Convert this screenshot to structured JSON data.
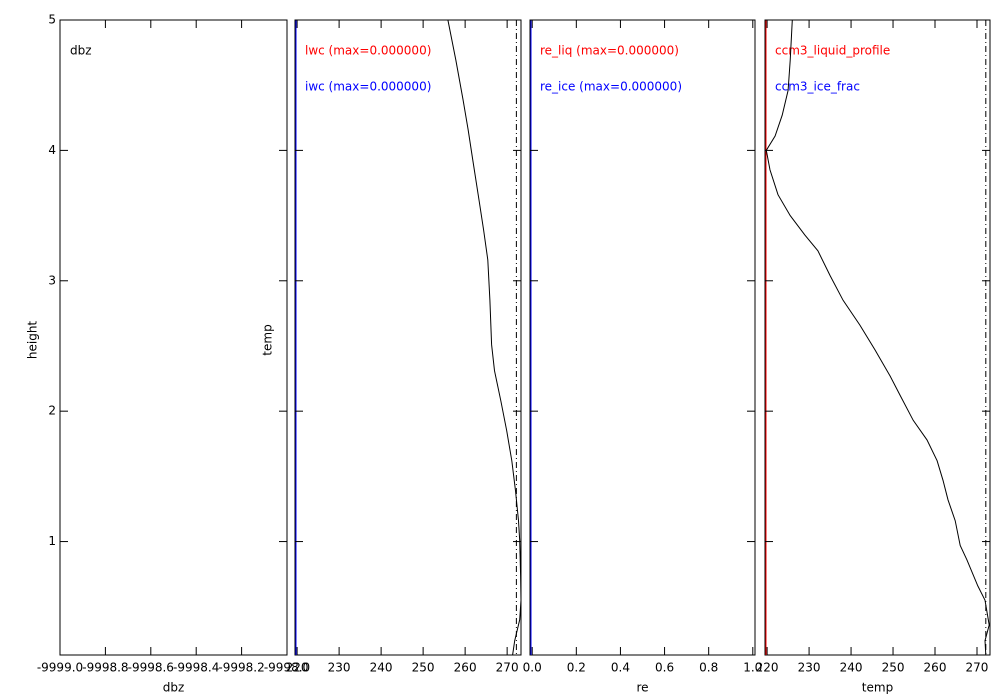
{
  "chart_data": [
    {
      "type": "line",
      "annotations": [
        {
          "text": "dbz",
          "color": "#000000"
        }
      ],
      "xlabel": "dbz",
      "ylabel": "height",
      "xlim": [
        -9999.0,
        -9998.0
      ],
      "xticks": [
        {
          "value": -9999.0,
          "label": "-9999.0"
        },
        {
          "value": -9998.8,
          "label": "-9998.8"
        },
        {
          "value": -9998.6,
          "label": "-9998.6"
        },
        {
          "value": -9998.4,
          "label": "-9998.4"
        },
        {
          "value": -9998.2,
          "label": "-9998.2"
        },
        {
          "value": -9998.0,
          "label": "-9998.0"
        }
      ],
      "ylim": [
        0.13,
        5
      ],
      "yticks": [
        1,
        2,
        3,
        4,
        5
      ],
      "show_ytick_labels": true,
      "series": []
    },
    {
      "type": "line",
      "annotations": [
        {
          "text": "lwc (max=0.000000)",
          "color": "#ff0000"
        },
        {
          "text": "iwc (max=0.000000)",
          "color": "#0000ff"
        }
      ],
      "ylabel": "temp",
      "xlim": [
        219.5,
        273.3
      ],
      "xticks": [
        220,
        230,
        240,
        250,
        260,
        270
      ],
      "ylim": [
        0.13,
        5
      ],
      "yticks": [
        1,
        2,
        3,
        4,
        5
      ],
      "show_ytick_labels": false,
      "left_axis_color": "#0000ff",
      "vline": 272.2,
      "series": [
        {
          "color": "#000000",
          "x": [
            255.9,
            257.8,
            259.5,
            260.7,
            261.8,
            263.3,
            264.4,
            265.4,
            265.9,
            266.3,
            267.0,
            268.5,
            269.9,
            271.1,
            272.0,
            272.7,
            273.0,
            273.2,
            273.3,
            273.0,
            271.8,
            271.3
          ],
          "values": [
            5,
            4.69,
            4.39,
            4.16,
            3.93,
            3.62,
            3.39,
            3.16,
            2.85,
            2.51,
            2.31,
            2.08,
            1.85,
            1.62,
            1.39,
            1.16,
            1.01,
            0.74,
            0.55,
            0.4,
            0.24,
            0.13
          ]
        }
      ]
    },
    {
      "type": "line",
      "annotations": [
        {
          "text": "re_liq (max=0.000000)",
          "color": "#ff0000"
        },
        {
          "text": "re_ice (max=0.000000)",
          "color": "#0000ff"
        }
      ],
      "xlabel": "re",
      "xlim": [
        -0.01,
        1.01
      ],
      "xticks": [
        {
          "value": 0,
          "label": "0.0"
        },
        {
          "value": 0.2,
          "label": "0.2"
        },
        {
          "value": 0.4,
          "label": "0.4"
        },
        {
          "value": 0.6,
          "label": "0.6"
        },
        {
          "value": 0.8,
          "label": "0.8"
        },
        {
          "value": 1,
          "label": "1.0"
        }
      ],
      "ylim": [
        0.13,
        5
      ],
      "yticks": [
        1,
        2,
        3,
        4,
        5
      ],
      "show_ytick_labels": false,
      "left_axis_color": "#0000ff",
      "series": []
    },
    {
      "type": "line",
      "annotations": [
        {
          "text": "ccm3_liquid_profile",
          "color": "#ff0000"
        },
        {
          "text": "ccm3_ice_frac",
          "color": "#0000ff"
        }
      ],
      "xlabel": "temp",
      "xlim": [
        219.5,
        273.1
      ],
      "xticks": [
        220,
        230,
        240,
        250,
        260,
        270
      ],
      "ylim": [
        0.13,
        5
      ],
      "yticks": [
        1,
        2,
        3,
        4,
        5
      ],
      "show_ytick_labels": false,
      "left_axis_color": "#ff0000",
      "vline": 272.1,
      "series": [
        {
          "color": "#000000",
          "x": [
            226.0,
            225.5,
            225.0,
            223.6,
            221.9,
            219.8,
            220.7,
            222.6,
            225.5,
            229.0,
            232.1,
            235.0,
            238.1,
            242.1,
            245.7,
            249.3,
            251.7,
            254.8,
            258.1,
            260.5,
            261.9,
            263.1,
            264.8,
            266.0,
            267.6,
            270.2,
            271.9,
            272.9,
            271.9,
            272.1
          ],
          "values": [
            5,
            4.69,
            4.46,
            4.27,
            4.11,
            4.0,
            3.85,
            3.66,
            3.5,
            3.35,
            3.23,
            3.04,
            2.85,
            2.66,
            2.47,
            2.27,
            2.12,
            1.93,
            1.78,
            1.62,
            1.47,
            1.32,
            1.16,
            0.97,
            0.86,
            0.66,
            0.55,
            0.36,
            0.24,
            0.13
          ]
        }
      ]
    }
  ]
}
